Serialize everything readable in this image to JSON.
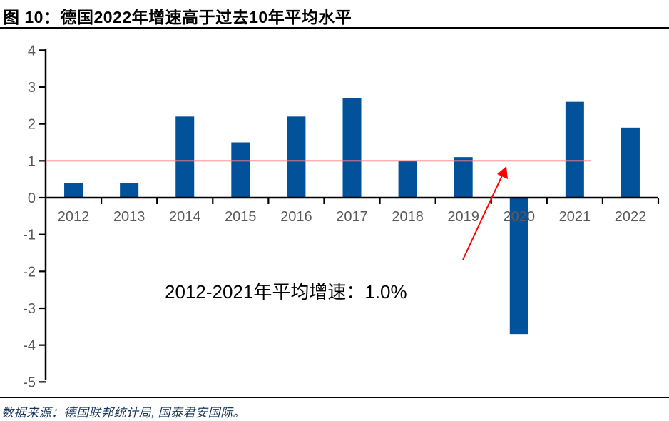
{
  "header": {
    "title": "图 10：德国2022年增速高于过去10年平均水平"
  },
  "footer": {
    "source": "数据来源：德国联邦统计局, 国泰君安国际。"
  },
  "chart_data": {
    "type": "bar",
    "title": "图 10：德国2022年增速高于过去10年平均水平",
    "categories": [
      "2012",
      "2013",
      "2014",
      "2015",
      "2016",
      "2017",
      "2018",
      "2019",
      "2020",
      "2021",
      "2022"
    ],
    "values": [
      0.4,
      0.4,
      2.2,
      1.5,
      2.2,
      2.7,
      1.0,
      1.1,
      -3.7,
      2.6,
      1.9
    ],
    "xlabel": "",
    "ylabel": "",
    "ylim": [
      -5,
      4
    ],
    "y_ticks": [
      4,
      3,
      2,
      1,
      0,
      -1,
      -2,
      -3,
      -4,
      -5
    ],
    "grid": false,
    "legend": "none",
    "bar_color": "#01519b",
    "axis_color": "#000000",
    "tick_label_color": "#595959",
    "reference_line": {
      "value": 1.0,
      "color": "#ff8080",
      "meaning": "2012-2021 average growth"
    },
    "annotation": {
      "text": "2012-2021年平均增速：1.0%",
      "arrow_color": "#ff0000"
    }
  }
}
